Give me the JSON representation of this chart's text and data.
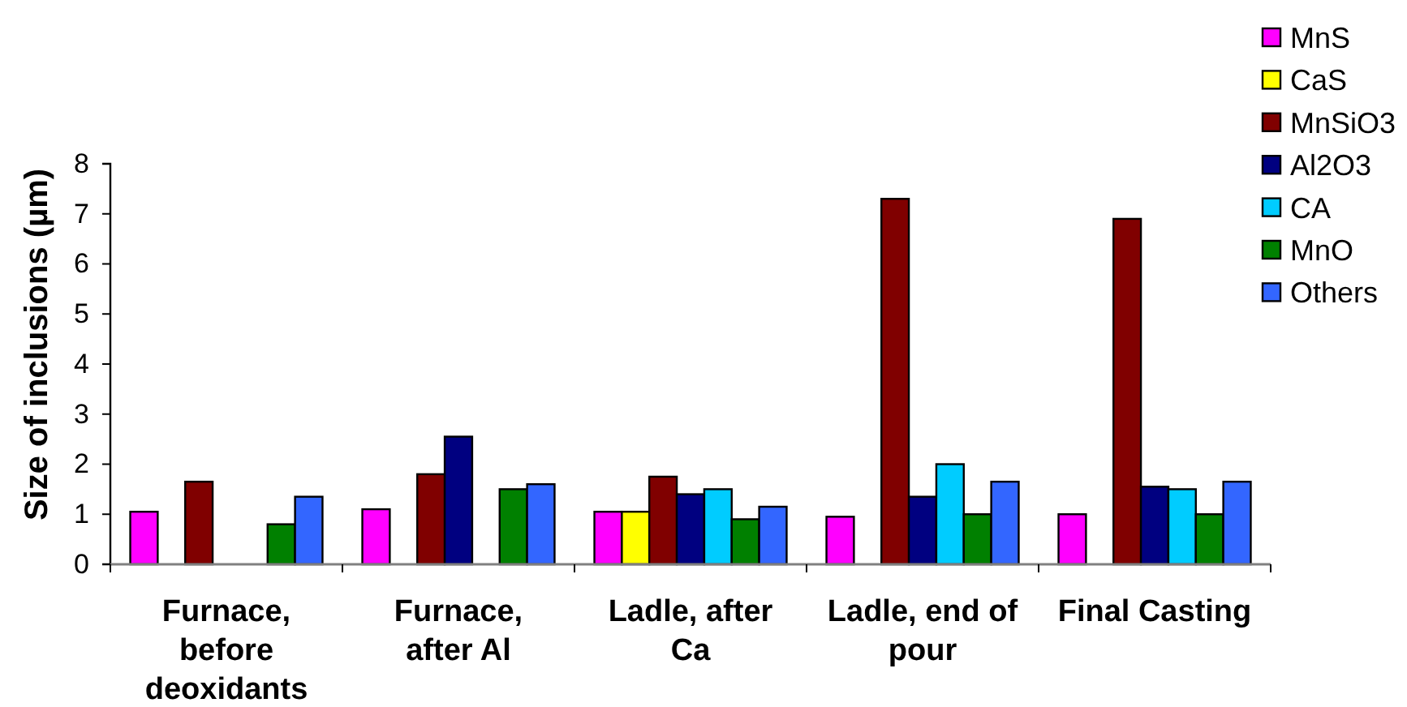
{
  "chart_data": {
    "type": "bar",
    "ylabel": "Size of inclusions (µm)",
    "categories": [
      "Furnace, before deoxidants",
      "Furnace, after Al",
      "Ladle, after Ca",
      "Ladle, end of pour",
      "Final Casting"
    ],
    "series": [
      {
        "name": "MnS",
        "color": "#ff00ff",
        "values": [
          1.05,
          1.1,
          1.05,
          0.95,
          1.0
        ]
      },
      {
        "name": "CaS",
        "color": "#ffff00",
        "values": [
          null,
          null,
          1.05,
          null,
          null
        ]
      },
      {
        "name": "MnSiO3",
        "color": "#800000",
        "values": [
          1.65,
          1.8,
          1.75,
          7.3,
          6.9
        ]
      },
      {
        "name": "Al2O3",
        "color": "#000080",
        "values": [
          null,
          2.55,
          1.4,
          1.35,
          1.55
        ]
      },
      {
        "name": "CA",
        "color": "#00ccff",
        "values": [
          null,
          null,
          1.5,
          2,
          1.5
        ]
      },
      {
        "name": "MnO",
        "color": "#008000",
        "values": [
          0.8,
          1.5,
          0.9,
          1.0,
          1.0
        ]
      },
      {
        "name": "Others",
        "color": "#3366ff",
        "values": [
          1.35,
          1.6,
          1.15,
          1.65,
          1.65
        ]
      }
    ],
    "ylim": [
      0,
      8
    ],
    "yticks": [
      0,
      1,
      2,
      3,
      4,
      5,
      6,
      7,
      8
    ],
    "legend": "top right"
  }
}
